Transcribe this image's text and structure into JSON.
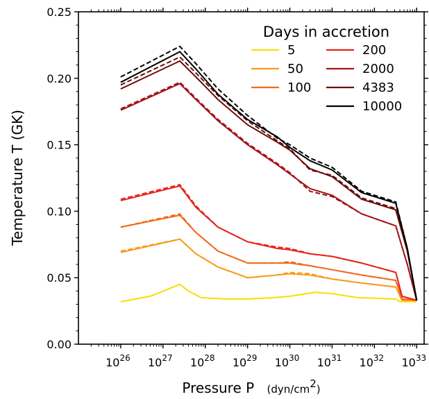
{
  "chart_data": {
    "type": "line",
    "xlabel": "Pressure  P",
    "xunit": "(dyn/cm",
    "xunit_sup": "2",
    "xunit_close": ")",
    "ylabel": "Temperature  T  (GK)",
    "xscale": "log",
    "xlim": [
      1e+25,
      1.5e+33
    ],
    "ylim": [
      0.0,
      0.25
    ],
    "x_ticks": [
      {
        "base": "10",
        "exp": "26",
        "value": 1e+26
      },
      {
        "base": "10",
        "exp": "27",
        "value": 1e+27
      },
      {
        "base": "10",
        "exp": "28",
        "value": 1e+28
      },
      {
        "base": "10",
        "exp": "29",
        "value": 1e+29
      },
      {
        "base": "10",
        "exp": "30",
        "value": 1e+30
      },
      {
        "base": "10",
        "exp": "31",
        "value": 1e+31
      },
      {
        "base": "10",
        "exp": "32",
        "value": 1e+32
      },
      {
        "base": "10",
        "exp": "33",
        "value": 1e+33
      }
    ],
    "y_ticks": [
      {
        "label": "0.00",
        "value": 0.0
      },
      {
        "label": "0.05",
        "value": 0.05
      },
      {
        "label": "0.10",
        "value": 0.1
      },
      {
        "label": "0.15",
        "value": 0.15
      },
      {
        "label": "0.20",
        "value": 0.2
      },
      {
        "label": "0.25",
        "value": 0.25
      }
    ],
    "grid": false,
    "legend": {
      "title": "Days in accretion",
      "placement": "top-right",
      "columns": 2
    },
    "series": [
      {
        "name": "5",
        "color": "#f5e10a",
        "points": [
          [
            1e+26,
            0.032
          ],
          [
            5e+26,
            0.036
          ],
          [
            2.5e+27,
            0.045
          ],
          [
            4e+27,
            0.04
          ],
          [
            8e+27,
            0.035
          ],
          [
            3e+28,
            0.034
          ],
          [
            1e+29,
            0.034
          ],
          [
            4e+29,
            0.035
          ],
          [
            1e+30,
            0.036
          ],
          [
            4e+30,
            0.039
          ],
          [
            1e+31,
            0.038
          ],
          [
            4e+31,
            0.035
          ],
          [
            3.2e+32,
            0.034
          ],
          [
            4e+32,
            0.032
          ],
          [
            1e+33,
            0.032
          ]
        ],
        "points_dashed": [
          [
            1e+26,
            0.032
          ],
          [
            5e+26,
            0.036
          ],
          [
            2.5e+27,
            0.045
          ],
          [
            4e+27,
            0.04
          ],
          [
            8e+27,
            0.035
          ],
          [
            3e+28,
            0.034
          ],
          [
            1e+29,
            0.034
          ],
          [
            4e+29,
            0.035
          ],
          [
            1e+30,
            0.036
          ],
          [
            4e+30,
            0.039
          ],
          [
            1e+31,
            0.038
          ],
          [
            4e+31,
            0.035
          ],
          [
            3.2e+32,
            0.034
          ],
          [
            4e+32,
            0.032
          ],
          [
            1e+33,
            0.032
          ]
        ]
      },
      {
        "name": "50",
        "color": "#f99a1c",
        "points": [
          [
            1e+26,
            0.069
          ],
          [
            2.5e+27,
            0.079
          ],
          [
            6e+27,
            0.068
          ],
          [
            2e+28,
            0.058
          ],
          [
            1e+29,
            0.05
          ],
          [
            5e+29,
            0.052
          ],
          [
            1e+30,
            0.053
          ],
          [
            3e+30,
            0.052
          ],
          [
            1e+31,
            0.049
          ],
          [
            5e+31,
            0.046
          ],
          [
            3.2e+32,
            0.043
          ],
          [
            4.5e+32,
            0.033
          ],
          [
            1e+33,
            0.033
          ]
        ],
        "points_dashed": [
          [
            1e+26,
            0.07
          ],
          [
            2.5e+27,
            0.079
          ],
          [
            6e+27,
            0.068
          ],
          [
            2e+28,
            0.058
          ],
          [
            1e+29,
            0.05
          ],
          [
            5e+29,
            0.052
          ],
          [
            1e+30,
            0.054
          ],
          [
            3e+30,
            0.053
          ],
          [
            1e+31,
            0.049
          ],
          [
            5e+31,
            0.046
          ],
          [
            3.2e+32,
            0.043
          ],
          [
            4.5e+32,
            0.033
          ],
          [
            1e+33,
            0.033
          ]
        ]
      },
      {
        "name": "100",
        "color": "#f06a1c",
        "points": [
          [
            1e+26,
            0.088
          ],
          [
            2.5e+27,
            0.097
          ],
          [
            6e+27,
            0.084
          ],
          [
            2e+28,
            0.07
          ],
          [
            1e+29,
            0.061
          ],
          [
            5e+29,
            0.061
          ],
          [
            1e+30,
            0.061
          ],
          [
            3e+30,
            0.059
          ],
          [
            1e+31,
            0.056
          ],
          [
            5e+31,
            0.052
          ],
          [
            3.2e+32,
            0.048
          ],
          [
            4.5e+32,
            0.034
          ],
          [
            1e+33,
            0.033
          ]
        ],
        "points_dashed": [
          [
            1e+26,
            0.088
          ],
          [
            2.5e+27,
            0.098
          ],
          [
            6e+27,
            0.084
          ],
          [
            2e+28,
            0.07
          ],
          [
            1e+29,
            0.061
          ],
          [
            5e+29,
            0.061
          ],
          [
            1e+30,
            0.062
          ],
          [
            3e+30,
            0.059
          ],
          [
            1e+31,
            0.056
          ],
          [
            5e+31,
            0.052
          ],
          [
            3.2e+32,
            0.048
          ],
          [
            4.5e+32,
            0.034
          ],
          [
            1e+33,
            0.033
          ]
        ]
      },
      {
        "name": "200",
        "color": "#e6241a",
        "points": [
          [
            1e+26,
            0.108
          ],
          [
            2.5e+27,
            0.119
          ],
          [
            6e+27,
            0.103
          ],
          [
            2e+28,
            0.088
          ],
          [
            1e+29,
            0.077
          ],
          [
            5e+29,
            0.072
          ],
          [
            1e+30,
            0.071
          ],
          [
            3e+30,
            0.068
          ],
          [
            1e+31,
            0.066
          ],
          [
            5e+31,
            0.061
          ],
          [
            3.2e+32,
            0.054
          ],
          [
            4.5e+32,
            0.036
          ],
          [
            1e+33,
            0.033
          ]
        ],
        "points_dashed": [
          [
            1e+26,
            0.109
          ],
          [
            2.5e+27,
            0.12
          ],
          [
            6e+27,
            0.104
          ],
          [
            2e+28,
            0.088
          ],
          [
            1e+29,
            0.077
          ],
          [
            5e+29,
            0.073
          ],
          [
            1e+30,
            0.072
          ],
          [
            3e+30,
            0.068
          ],
          [
            1e+31,
            0.066
          ],
          [
            5e+31,
            0.061
          ],
          [
            3.2e+32,
            0.054
          ],
          [
            4.5e+32,
            0.036
          ],
          [
            1e+33,
            0.033
          ]
        ]
      },
      {
        "name": "2000",
        "color": "#a5121a",
        "points": [
          [
            1e+26,
            0.176
          ],
          [
            2.5e+27,
            0.196
          ],
          [
            6e+27,
            0.184
          ],
          [
            2e+28,
            0.168
          ],
          [
            1e+29,
            0.15
          ],
          [
            5e+29,
            0.135
          ],
          [
            1e+30,
            0.128
          ],
          [
            3e+30,
            0.117
          ],
          [
            1e+31,
            0.112
          ],
          [
            5e+31,
            0.098
          ],
          [
            3.2e+32,
            0.089
          ],
          [
            6e+32,
            0.06
          ],
          [
            1e+33,
            0.033
          ]
        ],
        "points_dashed": [
          [
            1e+26,
            0.177
          ],
          [
            2.5e+27,
            0.197
          ],
          [
            6e+27,
            0.185
          ],
          [
            2e+28,
            0.169
          ],
          [
            1e+29,
            0.151
          ],
          [
            5e+29,
            0.136
          ],
          [
            1e+30,
            0.129
          ],
          [
            3e+30,
            0.115
          ],
          [
            1e+31,
            0.111
          ],
          [
            5e+31,
            0.098
          ],
          [
            3.2e+32,
            0.089
          ],
          [
            6e+32,
            0.06
          ],
          [
            1e+33,
            0.033
          ]
        ]
      },
      {
        "name": "4383",
        "color": "#6a0c0c",
        "points": [
          [
            1e+26,
            0.192
          ],
          [
            2.5e+27,
            0.213
          ],
          [
            6e+27,
            0.201
          ],
          [
            2e+28,
            0.184
          ],
          [
            1e+29,
            0.165
          ],
          [
            5e+29,
            0.152
          ],
          [
            1e+30,
            0.146
          ],
          [
            3e+30,
            0.132
          ],
          [
            1e+31,
            0.126
          ],
          [
            5e+31,
            0.109
          ],
          [
            3.2e+32,
            0.101
          ],
          [
            6e+32,
            0.07
          ],
          [
            1e+33,
            0.033
          ]
        ],
        "points_dashed": [
          [
            1e+26,
            0.195
          ],
          [
            2.5e+27,
            0.216
          ],
          [
            6e+27,
            0.204
          ],
          [
            2e+28,
            0.187
          ],
          [
            1e+29,
            0.168
          ],
          [
            5e+29,
            0.153
          ],
          [
            1e+30,
            0.147
          ],
          [
            3e+30,
            0.131
          ],
          [
            1e+31,
            0.127
          ],
          [
            5e+31,
            0.11
          ],
          [
            3.2e+32,
            0.102
          ],
          [
            6e+32,
            0.07
          ],
          [
            1e+33,
            0.033
          ]
        ]
      },
      {
        "name": "10000",
        "color": "#000000",
        "points": [
          [
            1e+26,
            0.197
          ],
          [
            2.5e+27,
            0.22
          ],
          [
            6e+27,
            0.207
          ],
          [
            2e+28,
            0.188
          ],
          [
            1e+29,
            0.169
          ],
          [
            5e+29,
            0.156
          ],
          [
            1e+30,
            0.148
          ],
          [
            3e+30,
            0.138
          ],
          [
            1e+31,
            0.131
          ],
          [
            5e+31,
            0.114
          ],
          [
            3.2e+32,
            0.106
          ],
          [
            6e+32,
            0.072
          ],
          [
            1e+33,
            0.033
          ]
        ],
        "points_dashed": [
          [
            1e+26,
            0.201
          ],
          [
            2.5e+27,
            0.224
          ],
          [
            6e+27,
            0.211
          ],
          [
            2e+28,
            0.192
          ],
          [
            1e+29,
            0.172
          ],
          [
            5e+29,
            0.155
          ],
          [
            1e+30,
            0.15
          ],
          [
            3e+30,
            0.14
          ],
          [
            1e+31,
            0.133
          ],
          [
            5e+31,
            0.115
          ],
          [
            3.2e+32,
            0.107
          ],
          [
            6e+32,
            0.072
          ],
          [
            1e+33,
            0.033
          ]
        ]
      }
    ]
  }
}
